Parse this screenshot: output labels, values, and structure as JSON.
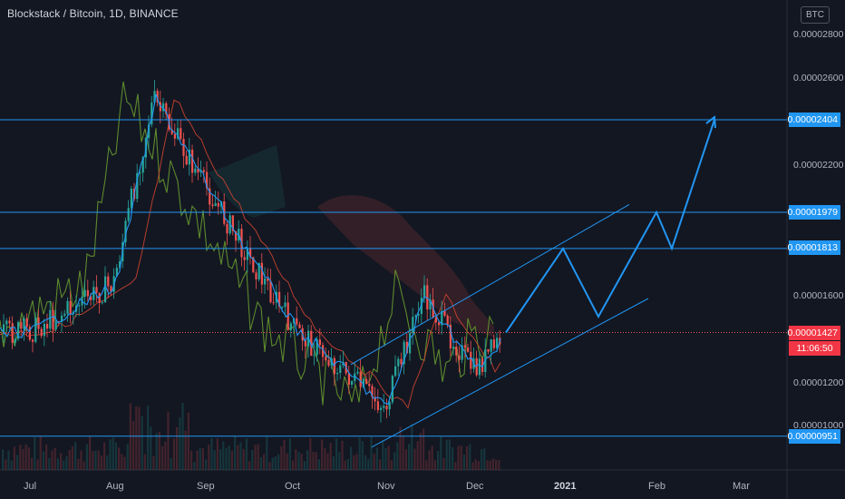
{
  "header": {
    "title": "Blockstack / Bitcoin, 1D, BINANCE",
    "currency_badge": "BTC"
  },
  "price_axis": {
    "ticks": [
      "0.00002800",
      "0.00002600",
      "0.00002200",
      "0.00001600",
      "0.00001200",
      "0.00001000"
    ]
  },
  "horizontal_levels": [
    {
      "label": "0.00002404",
      "value": 2.404e-05
    },
    {
      "label": "0.00001979",
      "value": 1.979e-05
    },
    {
      "label": "0.00001813",
      "value": 1.813e-05
    },
    {
      "label": "0.00000951",
      "value": 9.51e-06
    }
  ],
  "current_price": {
    "label": "0.00001427",
    "value": 1.427e-05,
    "countdown": "11:06:50"
  },
  "time_axis": {
    "labels": [
      "Jul",
      "Aug",
      "Sep",
      "Oct",
      "Nov",
      "Dec",
      "2021",
      "Feb",
      "Mar"
    ],
    "bold": [
      "2021"
    ]
  },
  "colors": {
    "background": "#131722",
    "up": "#26a69a",
    "down": "#ef5350",
    "level_line": "#2196f3",
    "projection": "#2196f3",
    "lagging": "#5d8a2d",
    "base": "#d4442f",
    "conversion": "#2196f3"
  },
  "chart_data": {
    "type": "candlestick",
    "symbol": "Blockstack / Bitcoin",
    "interval": "1D",
    "exchange": "BINANCE",
    "y_scale_unit": "BTC",
    "ylim": [
      8.8e-06,
      2.9e-05
    ],
    "x_range": [
      "Jul",
      "Mar"
    ],
    "anchor_points": [
      {
        "date": "Jul",
        "close": 1.44e-05
      },
      {
        "date": "Aug",
        "close": 1.65e-05
      },
      {
        "date": "Aug-mid",
        "close": 2.5e-05
      },
      {
        "date": "Sep",
        "close": 2.1e-05
      },
      {
        "date": "Oct",
        "close": 1.45e-05
      },
      {
        "date": "Nov",
        "close": 1.08e-05
      },
      {
        "date": "Nov-mid",
        "close": 1.6e-05
      },
      {
        "date": "Dec",
        "close": 1.25e-05
      },
      {
        "date": "Dec-mid",
        "close": 1.427e-05
      }
    ],
    "ascending_channel": {
      "lower": [
        {
          "date": "Nov",
          "value": 9.51e-06
        },
        {
          "date": "Feb",
          "value": 1.6e-05
        }
      ],
      "upper": [
        {
          "date": "Oct-mid",
          "value": 1.33e-05
        },
        {
          "date": "Jan-end",
          "value": 1.99e-05
        }
      ]
    },
    "projected_path": [
      {
        "date": "Dec-mid",
        "value": 1.427e-05
      },
      {
        "date": "2021",
        "value": 1.813e-05
      },
      {
        "date": "Jan-mid",
        "value": 1.5e-05
      },
      {
        "date": "Feb",
        "value": 1.979e-05
      },
      {
        "date": "Feb-early",
        "value": 1.813e-05
      },
      {
        "date": "Feb-end",
        "value": 2.404e-05
      }
    ]
  }
}
